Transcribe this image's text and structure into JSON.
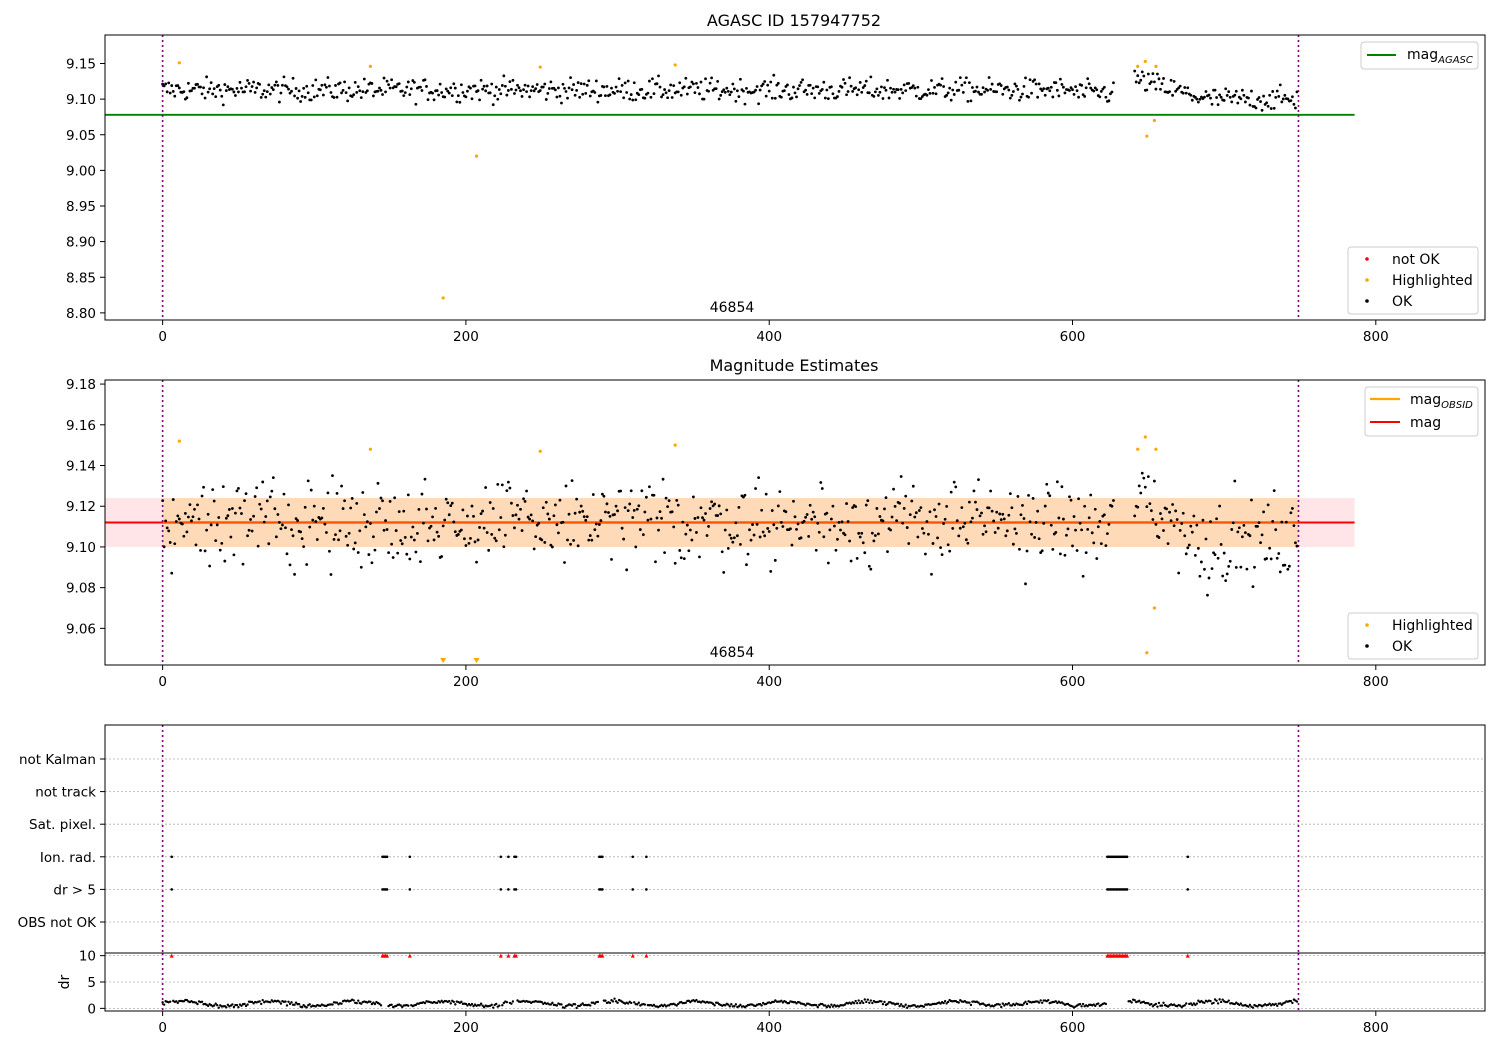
{
  "figure": {
    "colors": {
      "ok": "#000000",
      "highlighted": "#ffa500",
      "not_ok": "#ff0000",
      "agasc": "#008000",
      "mag": "#ff0000",
      "mag_obsid": "#ffa500",
      "band": "#ffdab9",
      "band_wide": "#ffe4e8",
      "obs_line": "#800080"
    }
  },
  "chart_data": [
    {
      "type": "scatter",
      "title": "AGASC ID 157947752",
      "xlim": [
        -38,
        872
      ],
      "ylim": [
        8.79,
        9.19
      ],
      "xticks": [
        0,
        200,
        400,
        600,
        800
      ],
      "yticks": [
        8.8,
        8.85,
        8.9,
        8.95,
        9.0,
        9.05,
        9.1,
        9.15
      ],
      "ytick_labels": [
        "8.80",
        "8.85",
        "8.90",
        "8.95",
        "9.00",
        "9.05",
        "9.10",
        "9.15"
      ],
      "obs_lines": [
        0,
        749
      ],
      "obsid_label": {
        "text": "46854",
        "x": 374,
        "y": 8.8
      },
      "hlines": [
        {
          "name": "mag_AGASC",
          "y": 9.078,
          "x0": -38,
          "x1": 786,
          "color": "#008000"
        }
      ],
      "ok_series": {
        "n": 749,
        "center": 9.113,
        "spread": 0.008,
        "gap": [
          627,
          641
        ],
        "late_dip_from": 690,
        "late_level": 9.1
      },
      "highlighted": [
        [
          11,
          9.151
        ],
        [
          137,
          9.146
        ],
        [
          185,
          8.821
        ],
        [
          207,
          9.02
        ],
        [
          249,
          9.145
        ],
        [
          338,
          9.148
        ],
        [
          643,
          9.146
        ],
        [
          648,
          9.153
        ],
        [
          649,
          9.048
        ],
        [
          654,
          9.07
        ],
        [
          655,
          9.146
        ]
      ],
      "legend_top": {
        "label_main": "mag",
        "label_sub": "AGASC"
      },
      "legend_bottom": [
        "not OK",
        "Highlighted",
        "OK"
      ]
    },
    {
      "type": "scatter",
      "title": "Magnitude Estimates",
      "xlim": [
        -38,
        872
      ],
      "ylim": [
        9.042,
        9.182
      ],
      "xticks": [
        0,
        200,
        400,
        600,
        800
      ],
      "yticks": [
        9.06,
        9.08,
        9.1,
        9.12,
        9.14,
        9.16,
        9.18
      ],
      "ytick_labels": [
        "9.06",
        "9.08",
        "9.10",
        "9.12",
        "9.14",
        "9.16",
        "9.18"
      ],
      "obs_lines": [
        0,
        749
      ],
      "obsid_label": {
        "text": "46854",
        "x": 374,
        "y": 9.044
      },
      "mag_line": 9.112,
      "mag_band": [
        9.1,
        9.124
      ],
      "band_x": [
        -38,
        786
      ],
      "ok_series": {
        "n": 749,
        "center": 9.112,
        "spread": 0.01,
        "gap": [
          627,
          641
        ],
        "late_dip_from": 690,
        "late_level": 9.103
      },
      "highlighted": [
        [
          11,
          9.152
        ],
        [
          137,
          9.148
        ],
        [
          249,
          9.147
        ],
        [
          338,
          9.15
        ],
        [
          643,
          9.148
        ],
        [
          648,
          9.154
        ],
        [
          649,
          9.048
        ],
        [
          654,
          9.07
        ],
        [
          655,
          9.148
        ]
      ],
      "offscale_markers": [
        185,
        207
      ],
      "legend_top": [
        {
          "label_main": "mag",
          "label_sub": "OBSID"
        },
        {
          "label_main": "mag",
          "label_sub": ""
        }
      ],
      "legend_bottom": [
        "Highlighted",
        "OK"
      ]
    },
    {
      "type": "scatter",
      "title": "",
      "xlim": [
        -38,
        872
      ],
      "xticks": [
        0,
        200,
        400,
        600,
        800
      ],
      "obs_lines": [
        0,
        749
      ],
      "flag_categories": [
        "not Kalman",
        "not track",
        "Sat. pixel.",
        "Ion. rad.",
        "dr > 5",
        "OBS not OK"
      ],
      "flag_points": {
        "Ion. rad.": [
          6,
          145,
          146,
          147,
          148,
          163,
          223,
          228,
          232,
          233,
          288,
          289,
          290,
          310,
          319,
          623,
          624,
          625,
          626,
          627,
          628,
          629,
          630,
          631,
          632,
          633,
          634,
          635,
          636,
          676
        ],
        "dr > 5": [
          6,
          145,
          146,
          147,
          148,
          163,
          223,
          228,
          232,
          233,
          288,
          289,
          290,
          310,
          319,
          623,
          624,
          625,
          626,
          627,
          628,
          629,
          630,
          631,
          632,
          633,
          634,
          635,
          636,
          676
        ]
      },
      "dr_ylabel": "dr",
      "dr_ylim": [
        -0.5,
        10.5
      ],
      "dr_yticks": [
        0,
        5,
        10
      ],
      "dr_ytick_labels": [
        "0",
        "5",
        "10"
      ],
      "dr_clipped_at": 10,
      "dr_series": {
        "n": 749,
        "base": 0.9,
        "amp": 0.55
      }
    }
  ]
}
